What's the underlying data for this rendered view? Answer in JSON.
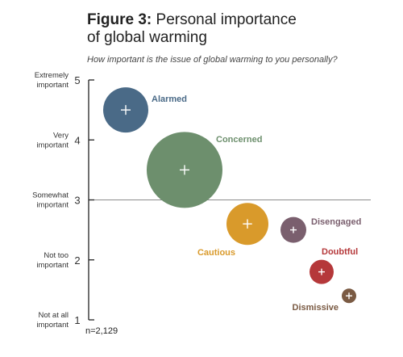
{
  "header": {
    "figure_label": "Figure 3:",
    "title_line1": "Personal importance",
    "title_line2": "of global warming"
  },
  "question": "How important is the issue of global warming to you personally?",
  "note": "n=2,129",
  "chart_data": {
    "type": "scatter",
    "title": "Figure 3: Personal importance of global warming",
    "subtitle": "How important is the issue of global warming to you personally?",
    "ylim": [
      1,
      5
    ],
    "yticks": [
      {
        "value": 5,
        "label": [
          "Extremely",
          "important"
        ]
      },
      {
        "value": 4,
        "label": [
          "Very",
          "important"
        ]
      },
      {
        "value": 3,
        "label": [
          "Somewhat",
          "important"
        ]
      },
      {
        "value": 2,
        "label": [
          "Not too",
          "important"
        ]
      },
      {
        "value": 1,
        "label": [
          "Not at all",
          "important"
        ]
      }
    ],
    "reference_line": 3,
    "points": [
      {
        "name": "Alarmed",
        "y": 4.5,
        "size": 1.0,
        "color": "#4a6a87",
        "label_pos": "right"
      },
      {
        "name": "Concerned",
        "y": 3.5,
        "size": 3.0,
        "color": "#6d8f6d",
        "label_pos": "top-right"
      },
      {
        "name": "Cautious",
        "y": 2.6,
        "size": 1.3,
        "color": "#d99a2b",
        "label_pos": "bottom-left"
      },
      {
        "name": "Disengaged",
        "y": 2.5,
        "size": 0.5,
        "color": "#7a5f6e",
        "label_pos": "top-right"
      },
      {
        "name": "Doubtful",
        "y": 1.8,
        "size": 0.45,
        "color": "#b5383a",
        "label_pos": "top-right"
      },
      {
        "name": "Dismissive",
        "y": 1.4,
        "size": 0.18,
        "color": "#7a5a43",
        "label_pos": "bottom-left"
      }
    ],
    "grid": false,
    "legend": "none"
  }
}
